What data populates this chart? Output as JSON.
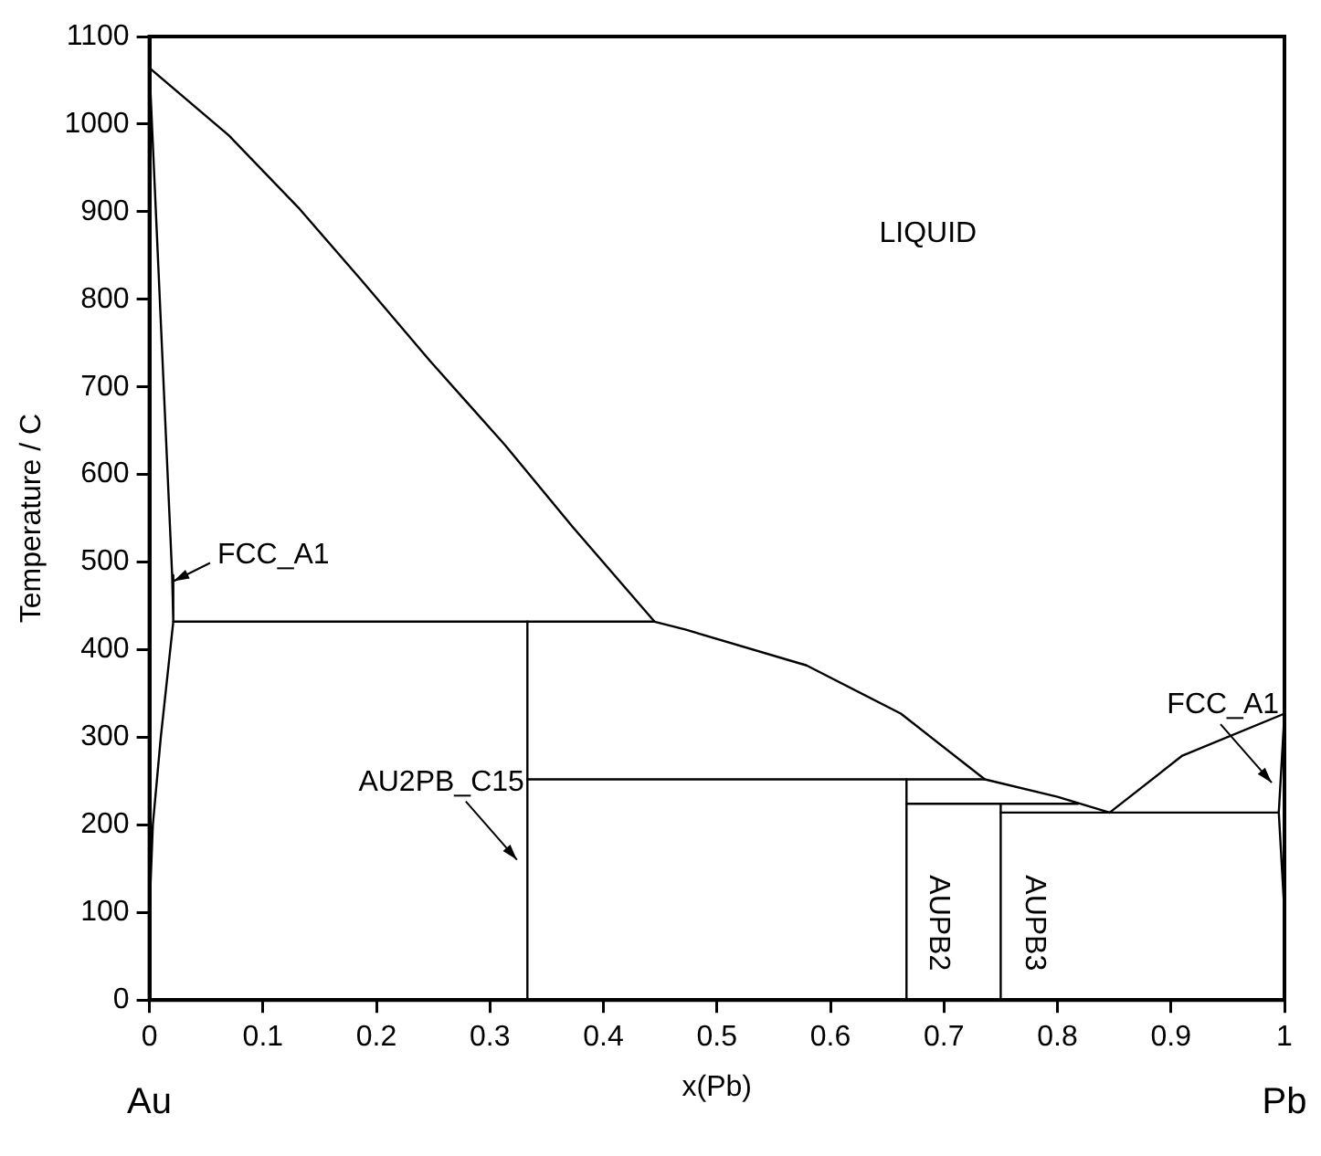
{
  "chart_data": {
    "type": "line",
    "xlabel": "x(Pb)",
    "ylabel": "Temperature / C",
    "marker": "none",
    "line_style": "solid",
    "legend": false,
    "grid": false,
    "xlim": [
      0,
      1
    ],
    "xticks": [
      0,
      0.1,
      0.2,
      0.3,
      0.4,
      0.5,
      0.6,
      0.7,
      0.8,
      0.9,
      1
    ],
    "ylim": [
      0,
      1100
    ],
    "yticks": [
      0,
      100,
      200,
      300,
      400,
      500,
      600,
      700,
      800,
      900,
      1000,
      1100
    ],
    "series": [
      {
        "color": "#000000",
        "x": [
          0,
          0.07,
          0.131,
          0.186,
          0.247,
          0.313,
          0.373,
          0.445
        ],
        "values": [
          1064,
          987,
          905,
          823,
          730,
          634,
          540,
          432
        ]
      },
      {
        "color": "#000000",
        "x": [
          0,
          0.02,
          0.021,
          0.01,
          0.003,
          0
        ],
        "values": [
          1064,
          485,
          432,
          300,
          200,
          100
        ]
      },
      {
        "color": "#000000",
        "x": [
          0.333,
          0.333
        ],
        "values": [
          0,
          432
        ]
      },
      {
        "color": "#000000",
        "x": [
          0.333,
          0.736
        ],
        "values": [
          252,
          252
        ]
      },
      {
        "color": "#000000",
        "x": [
          0.021,
          0.445,
          0.472,
          0.579,
          0.662,
          0.736,
          0.8,
          0.846
        ],
        "values": [
          432,
          432,
          423,
          382,
          327,
          252,
          232,
          214
        ]
      },
      {
        "color": "#000000",
        "x": [
          0.667,
          0.667
        ],
        "values": [
          0,
          252
        ]
      },
      {
        "color": "#000000",
        "x": [
          0.667,
          0.818
        ],
        "values": [
          224,
          224
        ]
      },
      {
        "color": "#000000",
        "x": [
          0.75,
          0.75
        ],
        "values": [
          0,
          224
        ]
      },
      {
        "color": "#000000",
        "x": [
          0.75,
          0.995
        ],
        "values": [
          214,
          214
        ]
      },
      {
        "color": "#000000",
        "x": [
          0.846,
          0.91,
          1
        ],
        "values": [
          214,
          279,
          327
        ]
      },
      {
        "color": "#000000",
        "x": [
          1,
          0.995,
          1
        ],
        "values": [
          327,
          214,
          100
        ]
      }
    ],
    "annotations": [
      "LIQUID",
      {
        "text": "FCC_A1",
        "x": 0.018,
        "y": 474
      },
      {
        "text": "AU2PB_C15",
        "x": 0.327,
        "y": 156
      },
      {
        "text": "FCC_A1",
        "x": 0.992,
        "y": 244
      },
      "AUPB2",
      "AUPB3",
      "Au",
      "Pb"
    ]
  }
}
